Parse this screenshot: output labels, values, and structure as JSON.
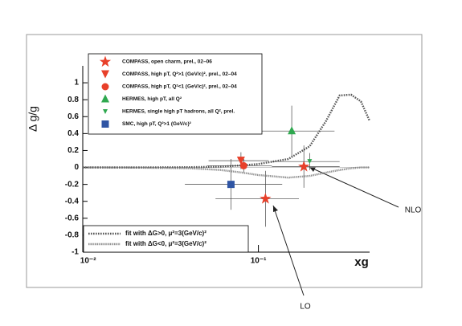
{
  "chart_data": {
    "type": "scatter",
    "y_label": "Δ g/g",
    "x_label": "xg",
    "xlog": true,
    "xlim": [
      0.0093,
      0.45
    ],
    "ylim": [
      -1,
      1.2
    ],
    "xticks": [
      {
        "value": 0.01,
        "label": "10⁻²"
      },
      {
        "value": 0.1,
        "label": "10⁻¹"
      }
    ],
    "yticks": [
      -1,
      -0.8,
      -0.6,
      -0.4,
      -0.2,
      0,
      0.2,
      0.4,
      0.6,
      0.8,
      1
    ],
    "series": [
      {
        "name": "COMPASS, open charm, prel., 02–06",
        "color": "#e8402a",
        "marker": "star",
        "x": [
          0.11,
          0.185
        ],
        "values": [
          -0.37,
          0.01
        ],
        "xrange": [
          [
            0.056,
            0.173
          ],
          [
            0.12,
            0.3
          ]
        ],
        "yerr": [
          0.33,
          0.25
        ]
      },
      {
        "name": "COMPASS, high pT, Q²>1 (GeV/c)², prel., 02–04",
        "color": "#e8402a",
        "marker": "tri-down",
        "x": [
          0.079
        ],
        "values": [
          0.08
        ],
        "xrange": [
          [
            0.051,
            0.115
          ]
        ],
        "yerr": [
          0.1
        ]
      },
      {
        "name": "COMPASS, high pT, Q²<1 (GeV/c)², prel., 02–04",
        "color": "#e8402a",
        "marker": "circle",
        "x": [
          0.082
        ],
        "values": [
          0.02
        ],
        "xrange": [
          [
            0.05,
            0.12
          ]
        ],
        "yerr": [
          0.08
        ]
      },
      {
        "name": "HERMES, high pT, all Q²",
        "color": "#2fa84f",
        "marker": "tri-up",
        "x": [
          0.157
        ],
        "values": [
          0.43
        ],
        "xrange": [
          [
            0.09,
            0.28
          ]
        ],
        "yerr": [
          0.3
        ]
      },
      {
        "name": "HERMES, single high pT hadrons, all Q², prel.",
        "color": "#2fa84f",
        "marker": "tri-small",
        "x": [
          0.2
        ],
        "values": [
          0.07
        ],
        "xrange": [
          [
            0.12,
            0.3
          ]
        ],
        "yerr": [
          0.1
        ]
      },
      {
        "name": "SMC, high pT, Q²>1 (GeV/c)²",
        "color": "#2f55a4",
        "marker": "square",
        "x": [
          0.069
        ],
        "values": [
          -0.2
        ],
        "xrange": [
          [
            0.037,
            0.138
          ]
        ],
        "yerr": [
          0.3
        ]
      }
    ],
    "fits": [
      {
        "name": "fit with  ΔG>0, μ²=3(GeV/c)²",
        "color": "#555555",
        "dash": "1.6 1.4",
        "x": [
          0.0093,
          0.02,
          0.04,
          0.06,
          0.08,
          0.1,
          0.15,
          0.2,
          0.25,
          0.3,
          0.35,
          0.4,
          0.45
        ],
        "values": [
          0,
          0,
          0.003,
          0.01,
          0.025,
          0.04,
          0.1,
          0.25,
          0.55,
          0.85,
          0.86,
          0.78,
          0.55
        ]
      },
      {
        "name": "fit with  ΔG<0, μ²=3(GeV/c)²",
        "color": "#777777",
        "dash": "0.8 0.8",
        "x": [
          0.0093,
          0.02,
          0.04,
          0.06,
          0.08,
          0.1,
          0.15,
          0.2,
          0.25,
          0.3,
          0.35,
          0.4,
          0.45
        ],
        "values": [
          0,
          -0.002,
          -0.01,
          -0.03,
          -0.06,
          -0.09,
          -0.12,
          -0.1,
          -0.06,
          -0.03,
          -0.01,
          0,
          0
        ]
      }
    ],
    "annotations": [
      "NLO",
      "LO"
    ]
  }
}
